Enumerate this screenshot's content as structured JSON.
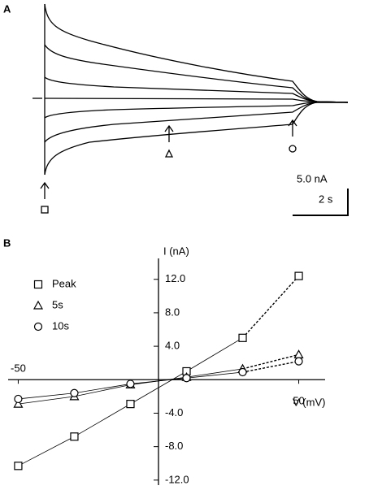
{
  "panel_a": {
    "label": "A",
    "scale_current": "5.0 nA",
    "scale_time": "2 s"
  },
  "panel_b": {
    "label": "B"
  },
  "chart_data": {
    "type": "line",
    "x_label": "V (mV)",
    "y_label": "I (nA)",
    "color": "#000000",
    "x": [
      -50,
      -30,
      -10,
      10,
      30,
      50
    ],
    "series": [
      {
        "name": "Peak",
        "marker": "square",
        "values": [
          -10.3,
          -6.8,
          -2.9,
          1.0,
          5.0,
          12.4
        ]
      },
      {
        "name": "5s",
        "marker": "triangle",
        "values": [
          -2.9,
          -2.0,
          -0.6,
          0.3,
          1.3,
          3.0
        ]
      },
      {
        "name": "10s",
        "marker": "circle",
        "values": [
          -2.3,
          -1.6,
          -0.5,
          0.2,
          0.9,
          2.2
        ]
      }
    ],
    "xlim": [
      -53.6,
      59.4
    ],
    "xticks": [
      -50,
      50
    ],
    "ylim": [
      -12.6,
      14.5
    ],
    "yticks": [
      {
        "value": 12,
        "label": "12.0"
      },
      {
        "value": 8,
        "label": "8.0"
      },
      {
        "value": 4,
        "label": "4.0"
      },
      {
        "value": -4,
        "label": "-4.0"
      },
      {
        "value": -8,
        "label": "-8.0"
      },
      {
        "value": -12,
        "label": "-12.0"
      }
    ]
  }
}
